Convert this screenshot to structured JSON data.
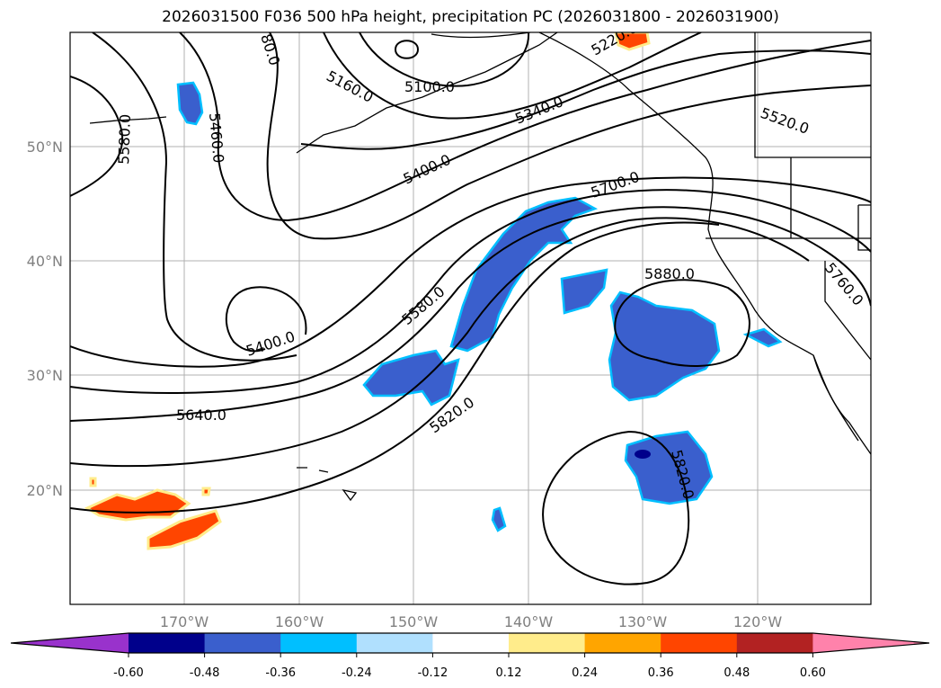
{
  "title": "2026031500 F036 500 hPa height, precipitation PC (2026031800 - 2026031900)",
  "axes": {
    "lat_labels": [
      "50°N",
      "40°N",
      "30°N",
      "20°N"
    ],
    "lon_labels": [
      "170°W",
      "160°W",
      "150°W",
      "140°W",
      "130°W",
      "120°W"
    ]
  },
  "contour_labels": [
    "5580.0",
    "5460.0",
    "80.0",
    "5160.0",
    "5100.0",
    "5220.0",
    "5340.0",
    "5520.0",
    "5400.0",
    "5700.0",
    "5400.0",
    "5580.0",
    "5880.0",
    "5760.0",
    "5640.0",
    "5820.0",
    "5820.0"
  ],
  "colorbar": {
    "colors": [
      "#9932cc",
      "#00008b",
      "#3a5fcd",
      "#00bfff",
      "#b0e0fe",
      "#ffffff",
      "#ffec8b",
      "#ffa500",
      "#ff4500",
      "#b22222",
      "#ff82ab"
    ],
    "tick_labels": [
      "-0.60",
      "-0.48",
      "-0.36",
      "-0.24",
      "-0.12",
      "0.12",
      "0.24",
      "0.36",
      "0.48",
      "0.60"
    ]
  }
}
